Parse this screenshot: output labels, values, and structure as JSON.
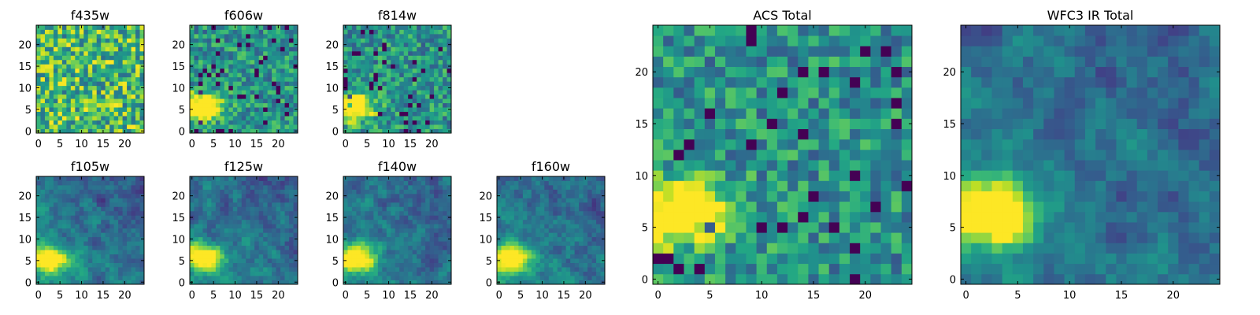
{
  "colors": {
    "colormap": "viridis",
    "low": "#440154",
    "high": "#fde725",
    "axis": "#000000"
  },
  "chart_data": [
    {
      "type": "heatmap",
      "title": "f435w",
      "xlim": [
        -0.5,
        24.5
      ],
      "ylim": [
        -0.5,
        24.5
      ],
      "xticks": [
        0,
        5,
        10,
        15,
        20
      ],
      "yticks": [
        0,
        5,
        10,
        15,
        20
      ],
      "grid": false,
      "texture": "uniform",
      "hotspot": {
        "x": 1.5,
        "y": 5.5,
        "strength": 0.0
      }
    },
    {
      "type": "heatmap",
      "title": "f606w",
      "xlim": [
        -0.5,
        24.5
      ],
      "ylim": [
        -0.5,
        24.5
      ],
      "xticks": [
        0,
        5,
        10,
        15,
        20
      ],
      "yticks": [
        0,
        5,
        10,
        15,
        20
      ],
      "grid": false,
      "texture": "noisy",
      "hotspot": {
        "x": 2.0,
        "y": 5.5,
        "strength": 0.9
      }
    },
    {
      "type": "heatmap",
      "title": "f814w",
      "xlim": [
        -0.5,
        24.5
      ],
      "ylim": [
        -0.5,
        24.5
      ],
      "xticks": [
        0,
        5,
        10,
        15,
        20
      ],
      "yticks": [
        0,
        5,
        10,
        15,
        20
      ],
      "grid": false,
      "texture": "noisy",
      "hotspot": {
        "x": 2.0,
        "y": 5.5,
        "strength": 0.85
      }
    },
    {
      "type": "heatmap",
      "title": "f105w",
      "xlim": [
        -0.5,
        24.5
      ],
      "ylim": [
        -0.5,
        24.5
      ],
      "xticks": [
        0,
        5,
        10,
        15,
        20
      ],
      "yticks": [
        0,
        5,
        10,
        15,
        20
      ],
      "grid": false,
      "texture": "smooth",
      "hotspot": {
        "x": 2.5,
        "y": 5.5,
        "strength": 0.8
      }
    },
    {
      "type": "heatmap",
      "title": "f125w",
      "xlim": [
        -0.5,
        24.5
      ],
      "ylim": [
        -0.5,
        24.5
      ],
      "xticks": [
        0,
        5,
        10,
        15,
        20
      ],
      "yticks": [
        0,
        5,
        10,
        15,
        20
      ],
      "grid": false,
      "texture": "smooth",
      "hotspot": {
        "x": 2.5,
        "y": 6.0,
        "strength": 0.8
      }
    },
    {
      "type": "heatmap",
      "title": "f140w",
      "xlim": [
        -0.5,
        24.5
      ],
      "ylim": [
        -0.5,
        24.5
      ],
      "xticks": [
        0,
        5,
        10,
        15,
        20
      ],
      "yticks": [
        0,
        5,
        10,
        15,
        20
      ],
      "grid": false,
      "texture": "smooth",
      "hotspot": {
        "x": 2.5,
        "y": 5.5,
        "strength": 0.85
      }
    },
    {
      "type": "heatmap",
      "title": "f160w",
      "xlim": [
        -0.5,
        24.5
      ],
      "ylim": [
        -0.5,
        24.5
      ],
      "xticks": [
        0,
        5,
        10,
        15,
        20
      ],
      "yticks": [
        0,
        5,
        10,
        15,
        20
      ],
      "grid": false,
      "texture": "smooth",
      "hotspot": {
        "x": 2.5,
        "y": 5.5,
        "strength": 0.9
      }
    },
    {
      "type": "heatmap",
      "title": "ACS Total",
      "xlim": [
        -0.5,
        24.5
      ],
      "ylim": [
        -0.5,
        24.5
      ],
      "xticks": [
        0,
        5,
        10,
        15,
        20
      ],
      "yticks": [
        0,
        5,
        10,
        15,
        20
      ],
      "grid": false,
      "texture": "noisy",
      "hotspot": {
        "x": 2.0,
        "y": 6.5,
        "strength": 0.85
      }
    },
    {
      "type": "heatmap",
      "title": "WFC3 IR Total",
      "xlim": [
        -0.5,
        24.5
      ],
      "ylim": [
        -0.5,
        24.5
      ],
      "xticks": [
        0,
        5,
        10,
        15,
        20
      ],
      "yticks": [
        0,
        5,
        10,
        15,
        20
      ],
      "grid": false,
      "texture": "smooth",
      "hotspot": {
        "x": 2.5,
        "y": 6.5,
        "strength": 0.95
      }
    }
  ]
}
